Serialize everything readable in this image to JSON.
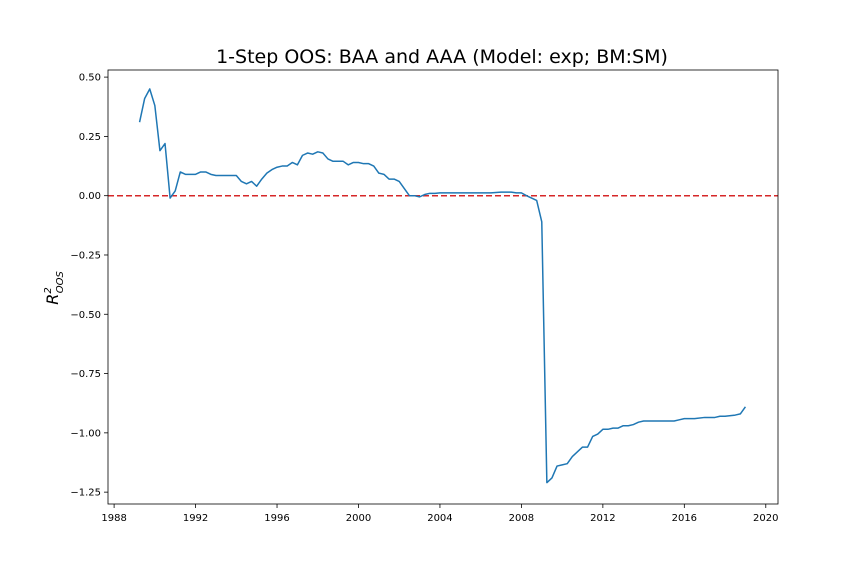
{
  "chart_data": {
    "type": "line",
    "title": "1-Step OOS: BAA and AAA (Model: exp; BM:SM)",
    "ylabel": "R",
    "ylabel_sup": "2",
    "ylabel_sub": "OOS",
    "xlabel": "",
    "xlim": [
      1987.7,
      2020.6
    ],
    "ylim": [
      -1.3,
      0.53
    ],
    "xticks": [
      1988,
      1992,
      1996,
      2000,
      2004,
      2008,
      2012,
      2016,
      2020
    ],
    "xtick_labels": [
      "1988",
      "1992",
      "1996",
      "2000",
      "2004",
      "2008",
      "2012",
      "2016",
      "2020"
    ],
    "yticks": [
      0.5,
      0.25,
      0.0,
      -0.25,
      -0.5,
      -0.75,
      -1.0,
      -1.25
    ],
    "ytick_labels": [
      "0.50",
      "0.25",
      "0.00",
      "−0.25",
      "−0.50",
      "−0.75",
      "−1.00",
      "−1.25"
    ],
    "grid": false,
    "legend": "none",
    "reference_line": {
      "y": 0.0,
      "color": "#d62728",
      "style": "dashed"
    },
    "series": [
      {
        "color": "#1f77b4",
        "x": [
          1989.25,
          1989.5,
          1989.75,
          1990.0,
          1990.25,
          1990.5,
          1990.75,
          1991.0,
          1991.25,
          1991.5,
          1991.75,
          1992.0,
          1992.25,
          1992.5,
          1992.75,
          1993.0,
          1993.25,
          1993.5,
          1993.75,
          1994.0,
          1994.25,
          1994.5,
          1994.75,
          1995.0,
          1995.25,
          1995.5,
          1995.75,
          1996.0,
          1996.25,
          1996.5,
          1996.75,
          1997.0,
          1997.25,
          1997.5,
          1997.75,
          1998.0,
          1998.25,
          1998.5,
          1998.75,
          1999.0,
          1999.25,
          1999.5,
          1999.75,
          2000.0,
          2000.25,
          2000.5,
          2000.75,
          2001.0,
          2001.25,
          2001.5,
          2001.75,
          2002.0,
          2002.25,
          2002.5,
          2002.75,
          2003.0,
          2003.25,
          2003.5,
          2003.75,
          2004.0,
          2004.5,
          2005.0,
          2005.5,
          2006.0,
          2006.5,
          2007.0,
          2007.5,
          2007.75,
          2008.0,
          2008.25,
          2008.5,
          2008.75,
          2009.0,
          2009.25,
          2009.5,
          2009.75,
          2010.0,
          2010.25,
          2010.5,
          2010.75,
          2011.0,
          2011.25,
          2011.5,
          2011.75,
          2012.0,
          2012.25,
          2012.5,
          2012.75,
          2013.0,
          2013.25,
          2013.5,
          2013.75,
          2014.0,
          2014.5,
          2015.0,
          2015.25,
          2015.5,
          2015.75,
          2016.0,
          2016.5,
          2017.0,
          2017.5,
          2017.75,
          2018.0,
          2018.5,
          2018.75,
          2019.0
        ],
        "y": [
          0.31,
          0.41,
          0.45,
          0.38,
          0.19,
          0.22,
          -0.01,
          0.02,
          0.1,
          0.09,
          0.09,
          0.09,
          0.1,
          0.1,
          0.09,
          0.085,
          0.085,
          0.085,
          0.085,
          0.085,
          0.06,
          0.05,
          0.06,
          0.04,
          0.07,
          0.095,
          0.11,
          0.12,
          0.125,
          0.125,
          0.14,
          0.13,
          0.17,
          0.18,
          0.175,
          0.185,
          0.18,
          0.155,
          0.145,
          0.145,
          0.145,
          0.13,
          0.14,
          0.14,
          0.135,
          0.135,
          0.125,
          0.095,
          0.09,
          0.07,
          0.07,
          0.06,
          0.03,
          0.0,
          0.0,
          -0.005,
          0.005,
          0.01,
          0.01,
          0.012,
          0.012,
          0.012,
          0.012,
          0.012,
          0.012,
          0.015,
          0.015,
          0.012,
          0.012,
          0.0,
          -0.01,
          -0.02,
          -0.11,
          -1.21,
          -1.19,
          -1.14,
          -1.135,
          -1.13,
          -1.1,
          -1.08,
          -1.06,
          -1.06,
          -1.015,
          -1.005,
          -0.985,
          -0.985,
          -0.98,
          -0.98,
          -0.97,
          -0.97,
          -0.965,
          -0.955,
          -0.95,
          -0.95,
          -0.95,
          -0.95,
          -0.95,
          -0.945,
          -0.94,
          -0.94,
          -0.935,
          -0.935,
          -0.93,
          -0.93,
          -0.925,
          -0.92,
          -0.89
        ]
      }
    ]
  }
}
